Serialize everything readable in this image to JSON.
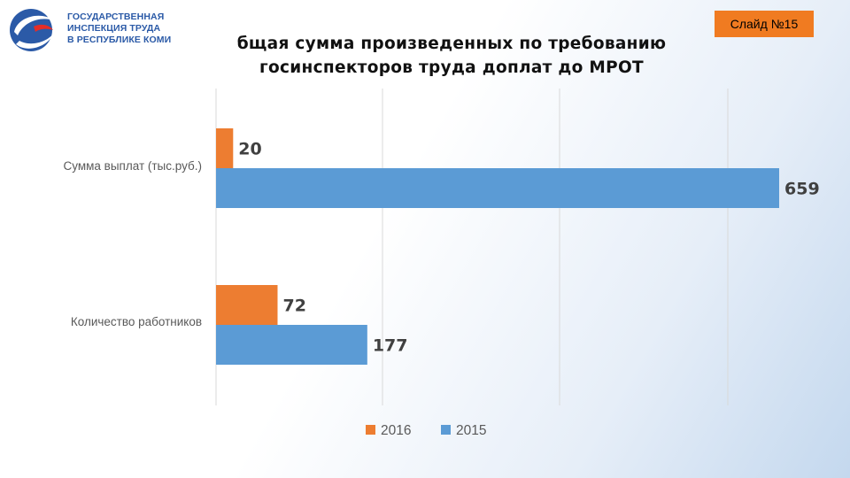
{
  "logo": {
    "lines": [
      "ГОСУДАРСТВЕННАЯ",
      "ИНСПЕКЦИЯ ТРУДА",
      "В РЕСПУБЛИКЕ КОМИ"
    ]
  },
  "slide_label": "Слайд №15",
  "title": {
    "line1": "бщая сумма произведенных по требованию",
    "line2": "госинспекторов труда доплат до МРОТ"
  },
  "colors": {
    "series_2016": "#ed7d31",
    "series_2015": "#5b9bd5",
    "badge": "#f07b21",
    "logo_blue": "#2b5aa7",
    "logo_red": "#e52d27"
  },
  "chart_data": {
    "type": "bar",
    "orientation": "horizontal",
    "categories": [
      "Сумма выплат (тыс.руб.)",
      "Количество работников"
    ],
    "series": [
      {
        "name": "2016",
        "values": [
          20,
          72
        ]
      },
      {
        "name": "2015",
        "values": [
          659,
          177
        ]
      }
    ],
    "xlim": [
      0,
      659
    ],
    "grid": true,
    "legend_position": "bottom",
    "data_labels": true
  }
}
